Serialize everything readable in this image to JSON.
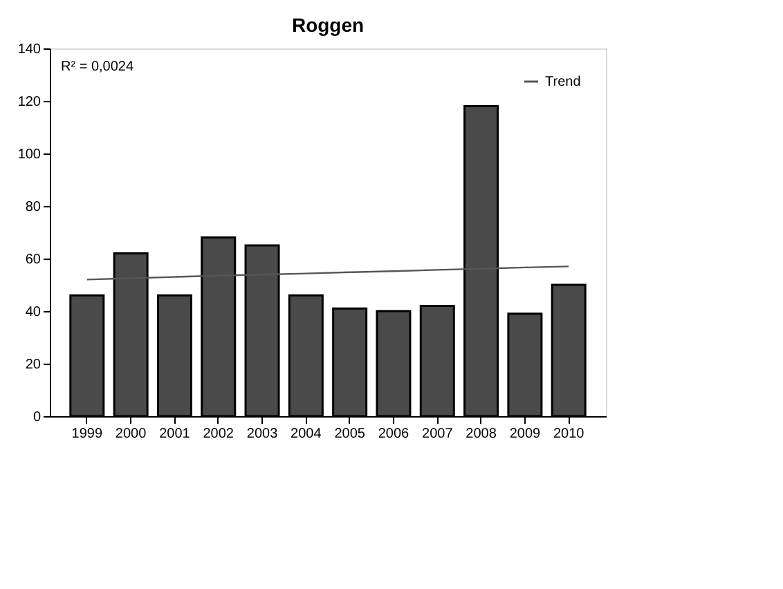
{
  "chart_data": {
    "type": "bar",
    "title": "Roggen",
    "categories": [
      "1999",
      "2000",
      "2001",
      "2002",
      "2003",
      "2004",
      "2005",
      "2006",
      "2007",
      "2008",
      "2009",
      "2010"
    ],
    "series": [
      {
        "color": "#4a4a4a",
        "values": [
          46,
          62,
          46,
          68,
          65,
          46,
          41,
          40,
          42,
          118,
          39,
          50
        ]
      },
      {
        "type": "line",
        "name": "Trend",
        "color": "#555555",
        "values": [
          52,
          52.5,
          53,
          53.5,
          53.9,
          54.3,
          54.8,
          55.2,
          55.7,
          56.1,
          56.6,
          57
        ]
      }
    ],
    "annotations": [
      "R² = 0,0024"
    ],
    "ylim": [
      0,
      140
    ],
    "yticks": [
      0,
      20,
      40,
      60,
      80,
      100,
      120,
      140
    ],
    "grid": false,
    "legend": "top right"
  }
}
